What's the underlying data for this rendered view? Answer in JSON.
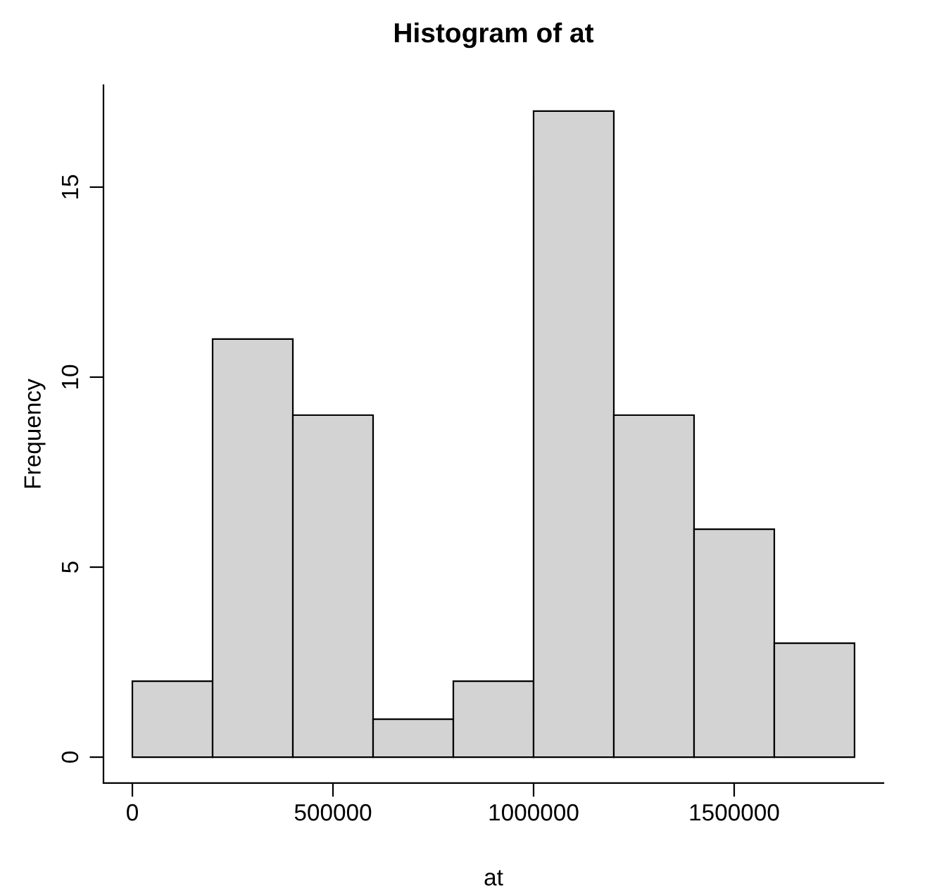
{
  "chart_data": {
    "type": "histogram",
    "title": "Histogram of at",
    "xlabel": "at",
    "ylabel": "Frequency",
    "bins": [
      0,
      200000,
      400000,
      600000,
      800000,
      1000000,
      1200000,
      1400000,
      1600000,
      1800000
    ],
    "values": [
      2,
      11,
      9,
      1,
      2,
      17,
      9,
      6,
      3
    ],
    "color": "#d3d3d3",
    "xlim": [
      -72000,
      1872000
    ],
    "xticks": [
      0,
      500000,
      1000000,
      1500000
    ],
    "ylim": [
      -0.68,
      17.68
    ],
    "yticks": [
      0,
      5,
      10,
      15
    ],
    "grid": false
  }
}
